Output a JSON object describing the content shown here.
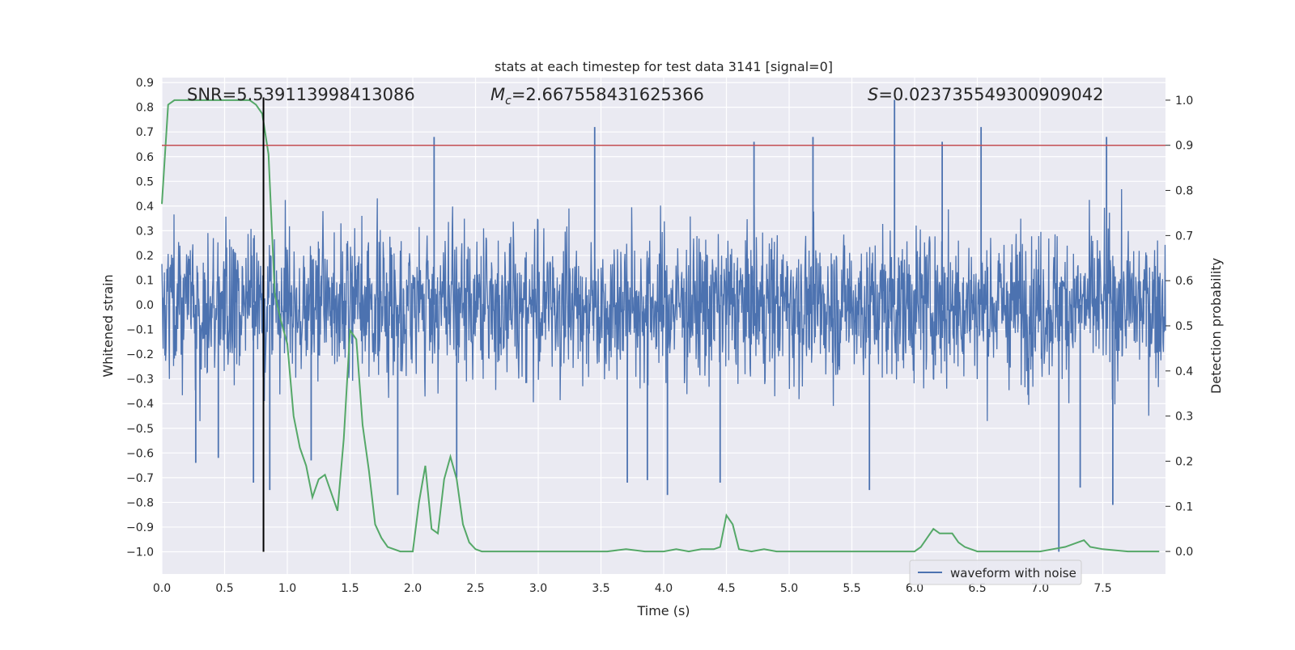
{
  "chart_data": {
    "type": "line",
    "title": "stats at each timestep for test data 3141 [signal=0]",
    "xlabel": "Time (s)",
    "ylabel_left": "Whitened strain",
    "ylabel_right": "Detection probability",
    "xlim": [
      0.0,
      8.0
    ],
    "ylim_left": [
      -1.09,
      0.92
    ],
    "ylim_right": [
      -0.05,
      1.05
    ],
    "x_ticks": [
      "0.0",
      "0.5",
      "1.0",
      "1.5",
      "2.0",
      "2.5",
      "3.0",
      "3.5",
      "4.0",
      "4.5",
      "5.0",
      "5.5",
      "6.0",
      "6.5",
      "7.0",
      "7.5"
    ],
    "y_ticks_left": [
      "0.9",
      "0.8",
      "0.7",
      "0.6",
      "0.5",
      "0.4",
      "0.3",
      "0.2",
      "0.1",
      "0.0",
      "−0.1",
      "−0.2",
      "−0.3",
      "−0.4",
      "−0.5",
      "−0.6",
      "−0.7",
      "−0.8",
      "−0.9",
      "−1.0"
    ],
    "y_ticks_right": [
      "0.0",
      "0.1",
      "0.2",
      "0.3",
      "0.4",
      "0.5",
      "0.6",
      "0.7",
      "0.8",
      "0.9",
      "1.0"
    ],
    "grid": true,
    "legend_position": "lower-right",
    "annotations": {
      "snr": "SNR=5.539113998413086",
      "mc_symbol": "M",
      "mc_sub": "c",
      "mc_value": "=2.667558431625366",
      "s_symbol": "S",
      "s_value": "=0.023735549300909042"
    },
    "vertical_line_x": 0.81,
    "threshold_probability": 0.9,
    "series": [
      {
        "name": "waveform with noise",
        "axis": "left",
        "color": "#4c72b0",
        "noise_envelope": {
          "typical_amplitude": 0.28,
          "max": 0.83,
          "min": -1.0
        },
        "spikes": [
          {
            "x": 0.27,
            "y": -0.64
          },
          {
            "x": 0.45,
            "y": -0.62
          },
          {
            "x": 0.73,
            "y": -0.72
          },
          {
            "x": 0.86,
            "y": -0.75
          },
          {
            "x": 1.19,
            "y": -0.63
          },
          {
            "x": 1.88,
            "y": -0.77
          },
          {
            "x": 2.17,
            "y": 0.68
          },
          {
            "x": 2.35,
            "y": -0.7
          },
          {
            "x": 3.45,
            "y": 0.72
          },
          {
            "x": 3.71,
            "y": -0.72
          },
          {
            "x": 3.87,
            "y": -0.71
          },
          {
            "x": 4.03,
            "y": -0.77
          },
          {
            "x": 4.45,
            "y": -0.72
          },
          {
            "x": 4.72,
            "y": 0.66
          },
          {
            "x": 5.19,
            "y": 0.68
          },
          {
            "x": 5.64,
            "y": -0.75
          },
          {
            "x": 5.84,
            "y": 0.83
          },
          {
            "x": 6.22,
            "y": 0.66
          },
          {
            "x": 6.53,
            "y": 0.72
          },
          {
            "x": 7.15,
            "y": -1.0
          },
          {
            "x": 7.32,
            "y": -0.74
          },
          {
            "x": 7.53,
            "y": 0.68
          },
          {
            "x": 7.58,
            "y": -0.81
          }
        ]
      },
      {
        "name": "",
        "axis": "right",
        "color": "#55a868",
        "x": [
          0.0,
          0.05,
          0.1,
          0.15,
          0.2,
          0.3,
          0.4,
          0.5,
          0.6,
          0.7,
          0.75,
          0.8,
          0.85,
          0.9,
          0.95,
          1.0,
          1.05,
          1.1,
          1.15,
          1.2,
          1.25,
          1.3,
          1.35,
          1.4,
          1.45,
          1.5,
          1.55,
          1.6,
          1.65,
          1.7,
          1.75,
          1.8,
          1.9,
          1.95,
          2.0,
          2.05,
          2.1,
          2.15,
          2.2,
          2.25,
          2.3,
          2.35,
          2.4,
          2.45,
          2.5,
          2.55,
          2.6,
          2.7,
          2.8,
          3.0,
          3.2,
          3.4,
          3.55,
          3.7,
          3.85,
          4.0,
          4.1,
          4.2,
          4.3,
          4.4,
          4.45,
          4.5,
          4.55,
          4.6,
          4.7,
          4.8,
          4.9,
          5.0,
          5.1,
          5.2,
          5.5,
          5.8,
          6.0,
          6.05,
          6.1,
          6.15,
          6.2,
          6.3,
          6.35,
          6.4,
          6.5,
          6.6,
          7.0,
          7.1,
          7.2,
          7.3,
          7.35,
          7.4,
          7.5,
          7.7,
          7.95
        ],
        "y": [
          0.77,
          0.99,
          1.0,
          1.0,
          1.0,
          1.0,
          1.0,
          1.0,
          1.0,
          1.0,
          0.99,
          0.97,
          0.88,
          0.57,
          0.51,
          0.46,
          0.3,
          0.23,
          0.19,
          0.12,
          0.16,
          0.17,
          0.13,
          0.09,
          0.25,
          0.49,
          0.47,
          0.28,
          0.18,
          0.06,
          0.03,
          0.01,
          0.0,
          0.0,
          0.0,
          0.11,
          0.19,
          0.05,
          0.04,
          0.16,
          0.21,
          0.16,
          0.06,
          0.02,
          0.005,
          0.0,
          0.0,
          0.0,
          0.0,
          0.0,
          0.0,
          0.0,
          0.0,
          0.005,
          0.0,
          0.0,
          0.005,
          0.0,
          0.005,
          0.005,
          0.01,
          0.08,
          0.06,
          0.005,
          0.0,
          0.005,
          0.0,
          0.0,
          0.0,
          0.0,
          0.0,
          0.0,
          0.0,
          0.01,
          0.03,
          0.05,
          0.04,
          0.04,
          0.02,
          0.01,
          0.0,
          0.0,
          0.0,
          0.005,
          0.01,
          0.02,
          0.025,
          0.01,
          0.005,
          0.0,
          0.0
        ]
      }
    ]
  }
}
